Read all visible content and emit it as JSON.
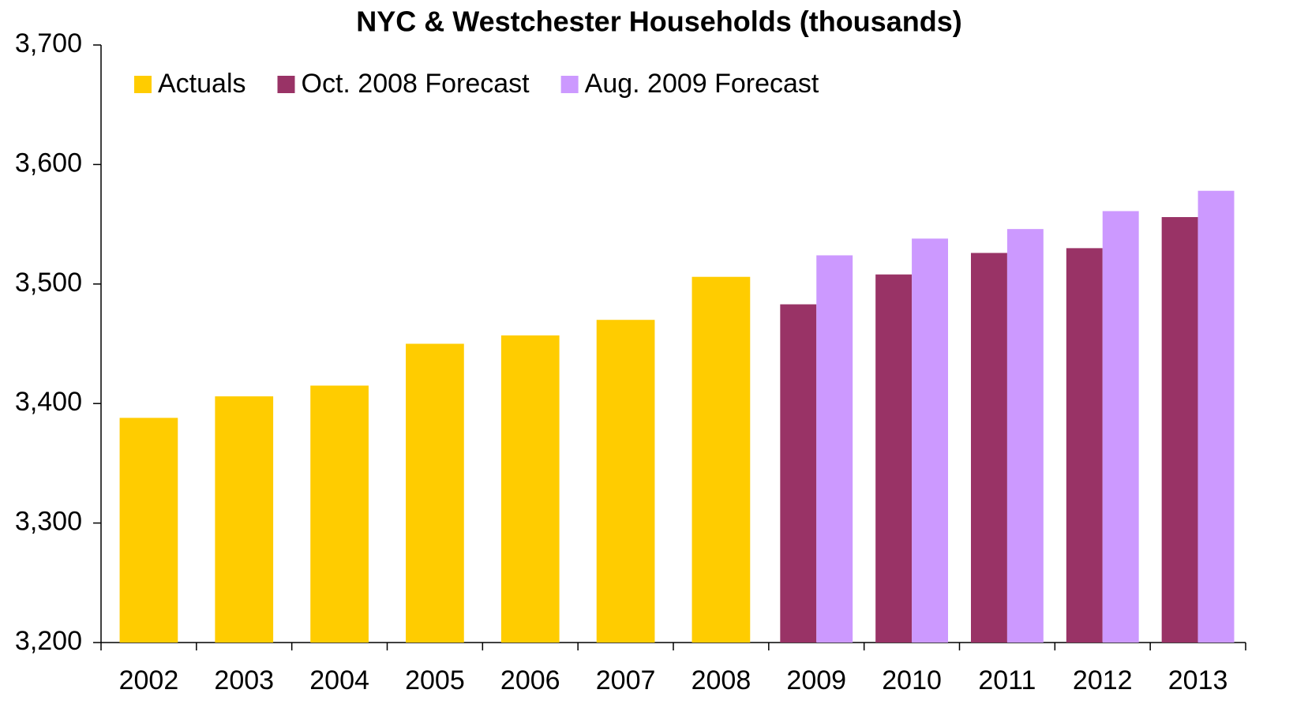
{
  "chart_data": {
    "type": "bar",
    "title": "NYC & Westchester Households (thousands)",
    "categories": [
      "2002",
      "2003",
      "2004",
      "2005",
      "2006",
      "2007",
      "2008",
      "2009",
      "2010",
      "2011",
      "2012",
      "2013"
    ],
    "series": [
      {
        "name": "Actuals",
        "color": "#ffcc00",
        "values": [
          3388,
          3406,
          3415,
          3450,
          3457,
          3470,
          3506,
          null,
          null,
          null,
          null,
          null
        ]
      },
      {
        "name": "Oct. 2008 Forecast",
        "color": "#993366",
        "values": [
          null,
          null,
          null,
          null,
          null,
          null,
          null,
          3483,
          3508,
          3526,
          3530,
          3556
        ]
      },
      {
        "name": "Aug. 2009 Forecast",
        "color": "#cc99ff",
        "values": [
          null,
          null,
          null,
          null,
          null,
          null,
          null,
          3524,
          3538,
          3546,
          3561,
          3578
        ]
      }
    ],
    "ylim": [
      3200,
      3700
    ],
    "yticks": [
      {
        "value": 3200,
        "label": "3,200"
      },
      {
        "value": 3300,
        "label": "3,300"
      },
      {
        "value": 3400,
        "label": "3,400"
      },
      {
        "value": 3500,
        "label": "3,500"
      },
      {
        "value": 3600,
        "label": "3,600"
      },
      {
        "value": 3700,
        "label": "3,700"
      }
    ],
    "grid": false,
    "legend": "top-left"
  }
}
